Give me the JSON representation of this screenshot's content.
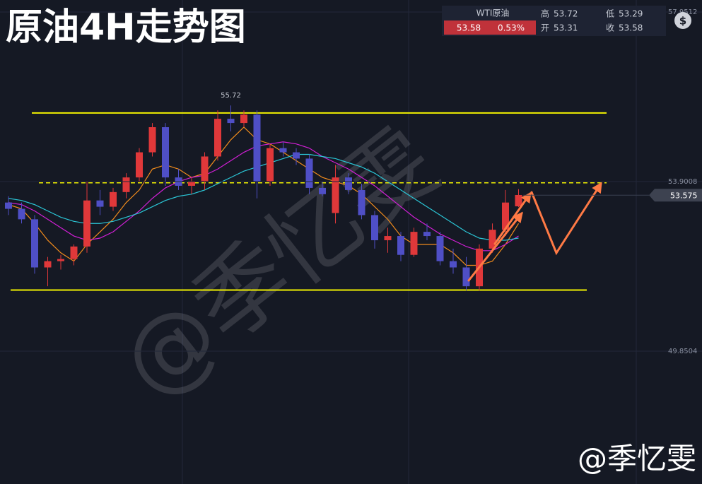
{
  "header": {
    "symbol": "WTI原油",
    "price": 53.58,
    "change_pct": "0.53%",
    "high_label": "高",
    "high": 53.72,
    "low_label": "低",
    "low": 53.29,
    "open_label": "开",
    "open": 53.31,
    "close_label": "收",
    "close": 53.58,
    "currency_icon": "$"
  },
  "watermark": "@季忆雯",
  "signature": "@季忆雯",
  "chart_data": {
    "type": "candlestick",
    "title": "原油4H走势图",
    "open": [
      53.4,
      53.25,
      53.0,
      51.85,
      52.0,
      52.05,
      52.35,
      53.45,
      53.3,
      53.65,
      54.0,
      54.6,
      55.2,
      54.0,
      53.8,
      53.9,
      54.5,
      55.4,
      55.3,
      55.5,
      53.9,
      54.7,
      54.6,
      54.45,
      53.75,
      53.15,
      54.0,
      53.7,
      53.1,
      52.5,
      52.6,
      52.15,
      52.7,
      52.6,
      52.0,
      51.85,
      51.4,
      52.3,
      52.75,
      53.31
    ],
    "high": [
      53.55,
      53.4,
      53.1,
      52.1,
      52.15,
      52.4,
      53.9,
      53.7,
      53.75,
      54.1,
      54.7,
      55.3,
      55.3,
      54.2,
      54.0,
      54.6,
      55.6,
      55.72,
      55.6,
      55.6,
      54.8,
      54.85,
      54.7,
      54.55,
      53.9,
      54.3,
      54.1,
      53.85,
      53.2,
      52.8,
      52.7,
      52.8,
      52.9,
      52.7,
      52.3,
      52.1,
      52.4,
      52.9,
      53.7,
      53.72
    ],
    "low": [
      53.1,
      52.9,
      51.7,
      51.4,
      51.8,
      51.9,
      52.2,
      53.1,
      53.2,
      53.5,
      53.9,
      54.5,
      53.8,
      53.7,
      53.6,
      53.7,
      54.4,
      55.1,
      55.2,
      53.5,
      53.8,
      54.5,
      54.3,
      53.6,
      53.55,
      52.9,
      53.6,
      53.0,
      52.3,
      52.2,
      52.0,
      52.1,
      52.5,
      51.9,
      51.7,
      51.3,
      51.3,
      52.2,
      52.6,
      53.29
    ],
    "close": [
      53.25,
      53.0,
      51.85,
      52.0,
      52.05,
      52.35,
      53.45,
      53.3,
      53.65,
      54.0,
      54.6,
      55.2,
      54.0,
      53.8,
      53.9,
      54.5,
      55.4,
      55.3,
      55.5,
      53.9,
      54.7,
      54.6,
      54.45,
      53.75,
      53.6,
      54.0,
      53.7,
      53.1,
      52.5,
      52.6,
      52.15,
      52.7,
      52.6,
      52.0,
      51.85,
      51.4,
      52.3,
      52.75,
      53.4,
      53.58
    ],
    "up_color": "#e0383a",
    "down_color": "#4f4fc6",
    "lines": [
      {
        "color": "#f28c1c",
        "values": [
          53.35,
          53.25,
          52.9,
          52.5,
          52.2,
          52.0,
          52.4,
          52.7,
          53.0,
          53.4,
          53.7,
          54.2,
          54.3,
          54.2,
          54.0,
          54.1,
          54.5,
          54.9,
          55.2,
          54.9,
          54.8,
          54.6,
          54.4,
          54.2,
          54.0,
          53.9,
          53.8,
          53.6,
          53.3,
          53.0,
          52.6,
          52.4,
          52.4,
          52.4,
          52.2,
          51.9,
          51.9,
          52.0,
          52.4,
          52.9
        ]
      },
      {
        "color": "#d21fd6",
        "values": [
          53.4,
          53.35,
          53.2,
          53.0,
          52.8,
          52.6,
          52.5,
          52.55,
          52.7,
          52.95,
          53.2,
          53.5,
          53.75,
          53.9,
          54.0,
          54.05,
          54.2,
          54.4,
          54.6,
          54.75,
          54.8,
          54.85,
          54.8,
          54.7,
          54.5,
          54.35,
          54.2,
          54.0,
          53.8,
          53.55,
          53.3,
          53.05,
          52.85,
          52.65,
          52.5,
          52.35,
          52.25,
          52.25,
          52.4,
          52.6
        ]
      },
      {
        "color": "#2bc6d6",
        "values": [
          53.5,
          53.45,
          53.35,
          53.2,
          53.05,
          52.95,
          52.9,
          52.9,
          52.95,
          53.05,
          53.15,
          53.3,
          53.45,
          53.55,
          53.6,
          53.7,
          53.85,
          54.0,
          54.15,
          54.25,
          54.35,
          54.45,
          54.55,
          54.55,
          54.5,
          54.45,
          54.35,
          54.25,
          54.1,
          53.9,
          53.7,
          53.5,
          53.3,
          53.1,
          52.9,
          52.7,
          52.55,
          52.5,
          52.5,
          52.55
        ]
      }
    ],
    "levels": [
      {
        "value": 55.54,
        "color": "#f2f200",
        "dashed": false
      },
      {
        "value": 51.31,
        "color": "#f2f200",
        "dashed": false
      },
      {
        "value": 53.87,
        "color": "#f2f200",
        "dashed": true
      }
    ],
    "last_price": 53.575,
    "ylim": [
      46.677,
      58.238
    ],
    "yticks": [
      49.8504,
      53.9008,
      57.9512
    ],
    "grid": true
  }
}
